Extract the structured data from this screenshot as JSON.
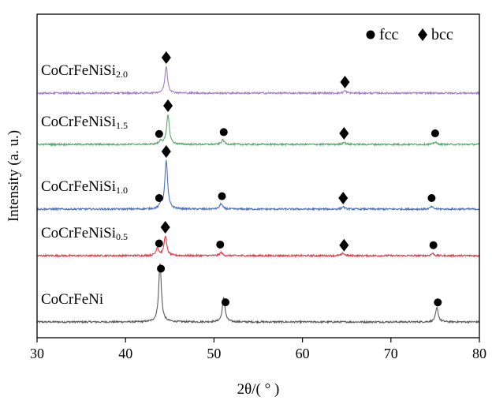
{
  "chart_data": {
    "type": "line",
    "xlabel": "2θ/( ° )",
    "ylabel": "Intensity (a. u.)",
    "xlim": [
      30,
      80
    ],
    "xticks": [
      "30",
      "40",
      "50",
      "60",
      "70",
      "80"
    ],
    "grid": false,
    "legend": {
      "placement": "top-right",
      "entries": [
        {
          "marker": "circle",
          "label": "fcc"
        },
        {
          "marker": "diamond",
          "label": "bcc"
        }
      ]
    },
    "series": [
      {
        "name": "CoCrFeNi",
        "label_main": "CoCrFeNi",
        "label_sub": "",
        "color": "#5a5a5a",
        "offset": 0,
        "peaks": [
          {
            "x": 43.9,
            "h": 74
          },
          {
            "x": 51.1,
            "h": 31
          },
          {
            "x": 75.2,
            "h": 18
          }
        ],
        "markers": [
          {
            "x": 44.0,
            "shape": "circle"
          },
          {
            "x": 51.3,
            "shape": "circle"
          },
          {
            "x": 75.3,
            "shape": "circle"
          }
        ]
      },
      {
        "name": "CoCrFeNiSi0.5",
        "label_main": "CoCrFeNiSi",
        "label_sub": "0.5",
        "color": "#e03a4a",
        "offset": 1,
        "peaks": [
          {
            "x": 43.6,
            "h": 10
          },
          {
            "x": 44.5,
            "h": 25
          },
          {
            "x": 50.8,
            "h": 4
          },
          {
            "x": 64.6,
            "h": 3
          },
          {
            "x": 74.7,
            "h": 3
          }
        ],
        "markers": [
          {
            "x": 43.8,
            "shape": "circle"
          },
          {
            "x": 44.5,
            "shape": "diamond"
          },
          {
            "x": 50.7,
            "shape": "circle"
          },
          {
            "x": 64.7,
            "shape": "diamond"
          },
          {
            "x": 74.8,
            "shape": "circle"
          }
        ]
      },
      {
        "name": "CoCrFeNiSi1.0",
        "label_main": "CoCrFeNiSi",
        "label_sub": "1.0",
        "color": "#4a72c4",
        "offset": 2,
        "peaks": [
          {
            "x": 44.0,
            "h": 6
          },
          {
            "x": 44.6,
            "h": 62
          },
          {
            "x": 50.8,
            "h": 7
          },
          {
            "x": 64.6,
            "h": 3
          },
          {
            "x": 74.6,
            "h": 3
          }
        ],
        "markers": [
          {
            "x": 43.8,
            "shape": "circle"
          },
          {
            "x": 44.6,
            "shape": "diamond"
          },
          {
            "x": 50.9,
            "shape": "circle"
          },
          {
            "x": 64.6,
            "shape": "diamond"
          },
          {
            "x": 74.6,
            "shape": "circle"
          }
        ]
      },
      {
        "name": "CoCrFeNiSi1.5",
        "label_main": "CoCrFeNiSi",
        "label_sub": "1.5",
        "color": "#5aa870",
        "offset": 3,
        "peaks": [
          {
            "x": 44.0,
            "h": 5
          },
          {
            "x": 44.8,
            "h": 38
          },
          {
            "x": 51.0,
            "h": 6
          },
          {
            "x": 64.7,
            "h": 3
          },
          {
            "x": 75.0,
            "h": 3
          }
        ],
        "markers": [
          {
            "x": 43.8,
            "shape": "circle"
          },
          {
            "x": 44.8,
            "shape": "diamond"
          },
          {
            "x": 51.1,
            "shape": "circle"
          },
          {
            "x": 64.7,
            "shape": "diamond"
          },
          {
            "x": 75.0,
            "shape": "circle"
          }
        ]
      },
      {
        "name": "CoCrFeNiSi2.0",
        "label_main": "CoCrFeNiSi",
        "label_sub": "2.0",
        "color": "#a07cc8",
        "offset": 4,
        "peaks": [
          {
            "x": 44.6,
            "h": 34
          },
          {
            "x": 64.8,
            "h": 3
          }
        ],
        "markers": [
          {
            "x": 44.6,
            "shape": "diamond"
          },
          {
            "x": 64.8,
            "shape": "diamond"
          }
        ]
      }
    ]
  }
}
